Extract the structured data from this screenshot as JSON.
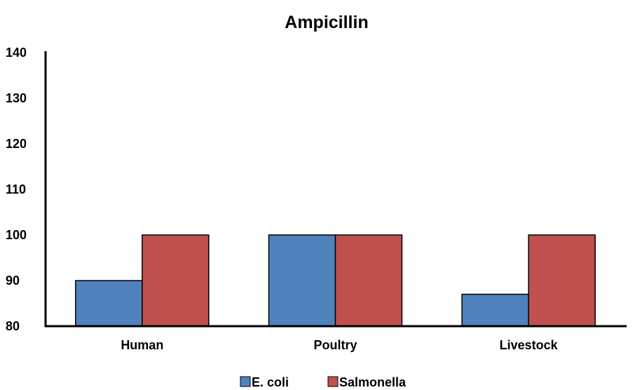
{
  "chart_data": {
    "type": "bar",
    "title": "Ampicillin",
    "xlabel": "",
    "ylabel": "",
    "categories": [
      "Human",
      "Poultry",
      "Livestock"
    ],
    "series": [
      {
        "name": "E. coli",
        "values": [
          90,
          100,
          87
        ],
        "color": "#4F81BD"
      },
      {
        "name": "Salmonella",
        "values": [
          100,
          100,
          100
        ],
        "color": "#C0504D"
      }
    ],
    "ylim": [
      80,
      140
    ],
    "yticks": [
      80,
      90,
      100,
      110,
      120,
      130,
      140
    ],
    "grid": false,
    "legend": "bottom"
  }
}
